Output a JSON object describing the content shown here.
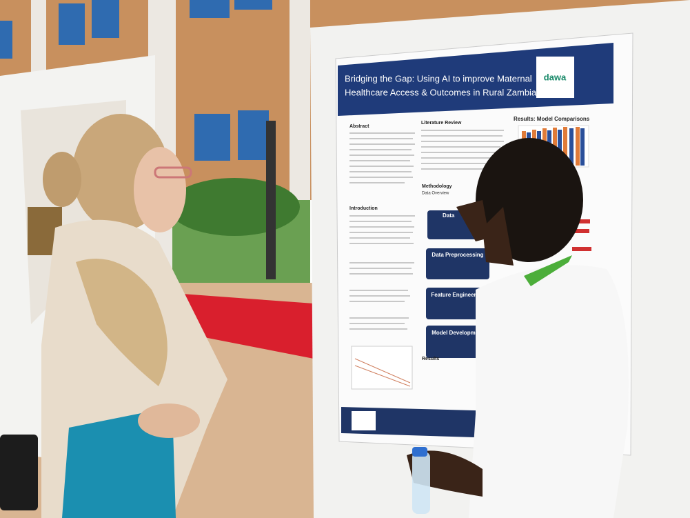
{
  "poster": {
    "title_lines": [
      "Bridging the Gap: Using AI to improve Maternal",
      "Healthcare Access & Outcomes in Rural Zambia"
    ],
    "logo": "dawa",
    "sections": {
      "abstract": "Abstract",
      "literature": "Literature Review",
      "results_chart": "Results: Model Comparisons",
      "methodology": "Methodology",
      "data_overview": "Data Overview",
      "introduction": "Introduction",
      "results": "Results"
    },
    "steps": [
      "Data",
      "Data Preprocessing",
      "Feature Engineering",
      "Model Development"
    ]
  }
}
